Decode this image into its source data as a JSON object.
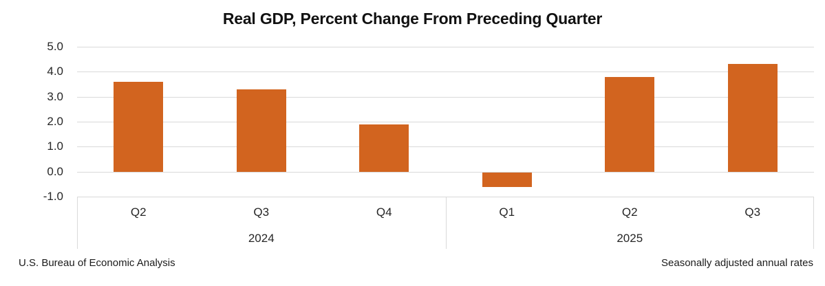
{
  "chart_data": {
    "type": "bar",
    "title": "Real GDP, Percent Change From Preceding Quarter",
    "categories": [
      "Q2",
      "Q3",
      "Q4",
      "Q1",
      "Q2",
      "Q3"
    ],
    "groups": [
      {
        "label": "2024",
        "category_indexes": [
          0,
          1,
          2
        ]
      },
      {
        "label": "2025",
        "category_indexes": [
          3,
          4,
          5
        ]
      }
    ],
    "values": [
      3.6,
      3.3,
      1.9,
      -0.6,
      3.8,
      4.3
    ],
    "y_ticks": [
      "5.0",
      "4.0",
      "3.0",
      "2.0",
      "1.0",
      "0.0",
      "-1.0"
    ],
    "ylim": [
      -1.0,
      5.0
    ],
    "grid": true,
    "legend_position": "none",
    "bar_color": "#d2641f",
    "gridline_color": "#d9d9d9",
    "footnote_left": "U.S. Bureau of Economic Analysis",
    "footnote_right": "Seasonally adjusted annual rates"
  }
}
